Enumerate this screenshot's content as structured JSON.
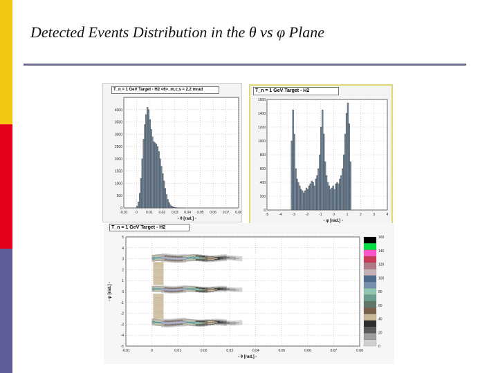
{
  "slide": {
    "title": "Detected Events Distribution in the θ vs φ Plane",
    "colors": {
      "band_yellow": "#f3c813",
      "band_red": "#e4001b",
      "band_blue": "#5d5d99",
      "rule": "#6f6f92",
      "bars": "#6f8396"
    }
  },
  "chart_data": [
    {
      "type": "bar",
      "id": "theta_hist",
      "header": "T_n = 1 GeV    Target - H2    <θ>_m.c.s = 2.2 mrad",
      "xlabel": "θ [rad.]",
      "xlim": [
        -0.01,
        0.08
      ],
      "ylim": [
        0,
        4500
      ],
      "xticks": [
        "-0.01",
        "0",
        "0.01",
        "0.02",
        "0.03",
        "0.04",
        "0.05",
        "0.06",
        "0.07",
        "0.08"
      ],
      "yticks": [
        "0",
        "500",
        "1000",
        "1500",
        "2000",
        "2500",
        "3000",
        "3500",
        "4000"
      ],
      "bin_start": 0.0,
      "bin_width": 0.001,
      "values": [
        80,
        250,
        600,
        1200,
        2000,
        2800,
        3400,
        3800,
        4100,
        4000,
        3600,
        3200,
        2900,
        2700,
        2650,
        2600,
        2500,
        2300,
        2000,
        1700,
        1400,
        1100,
        800,
        550,
        350,
        220,
        130,
        80,
        50,
        30,
        20,
        12,
        8,
        5,
        3,
        2,
        1,
        1,
        0,
        0,
        0
      ]
    },
    {
      "type": "bar",
      "id": "phi_hist",
      "header": "T_n = 1 GeV    Target - H2",
      "xlabel": "φ [rad.]",
      "xlim": [
        -5,
        4
      ],
      "ylim": [
        0,
        1600
      ],
      "xticks": [
        "-5",
        "-4",
        "-3",
        "-2",
        "-1",
        "0",
        "1",
        "2",
        "3",
        "4"
      ],
      "yticks": [
        "0",
        "200",
        "400",
        "600",
        "800",
        "1000",
        "1200",
        "1400",
        "1600"
      ],
      "bin_start": -3.2,
      "bin_width": 0.1,
      "values": [
        1000,
        1450,
        1100,
        600,
        450,
        400,
        350,
        300,
        280,
        250,
        280,
        320,
        300,
        350,
        380,
        420,
        400,
        350,
        450,
        500,
        600,
        800,
        1200,
        1450,
        1100,
        700,
        500,
        400,
        350,
        300,
        320,
        350,
        300,
        380,
        400,
        380,
        450,
        500,
        600,
        800,
        1100,
        1400,
        1550,
        1250,
        700
      ]
    },
    {
      "type": "heatmap",
      "id": "theta_phi_map",
      "header": "T_n = 1 GeV    Target - H2",
      "xlabel": "θ [rad.]",
      "ylabel": "φ [rad.]",
      "xlim": [
        -0.01,
        0.08
      ],
      "ylim": [
        -5,
        5
      ],
      "xticks": [
        "-0.01",
        "0",
        "0.01",
        "0.02",
        "0.03",
        "0.04",
        "0.05",
        "0.06",
        "0.07",
        "0.08"
      ],
      "yticks": [
        "-5",
        "-4",
        "-3",
        "-2",
        "-1",
        "0",
        "1",
        "2",
        "3",
        "4",
        "5"
      ],
      "zlim": [
        0,
        160
      ],
      "colorbar_ticks": [
        "0",
        "20",
        "40",
        "60",
        "80",
        "100",
        "120",
        "140",
        "160"
      ],
      "colorbar_colors": [
        "#cfcfcf",
        "#9e9e9e",
        "#5a5a5a",
        "#2e2e2e",
        "#c9b896",
        "#7a5f4a",
        "#607868",
        "#6a9e8e",
        "#8fc7b0",
        "#7890b0",
        "#4e6a8c",
        "#c6b0b8",
        "#b07a86",
        "#c93a56",
        "#ff55cc",
        "#00e040",
        "#000000"
      ]
    }
  ]
}
